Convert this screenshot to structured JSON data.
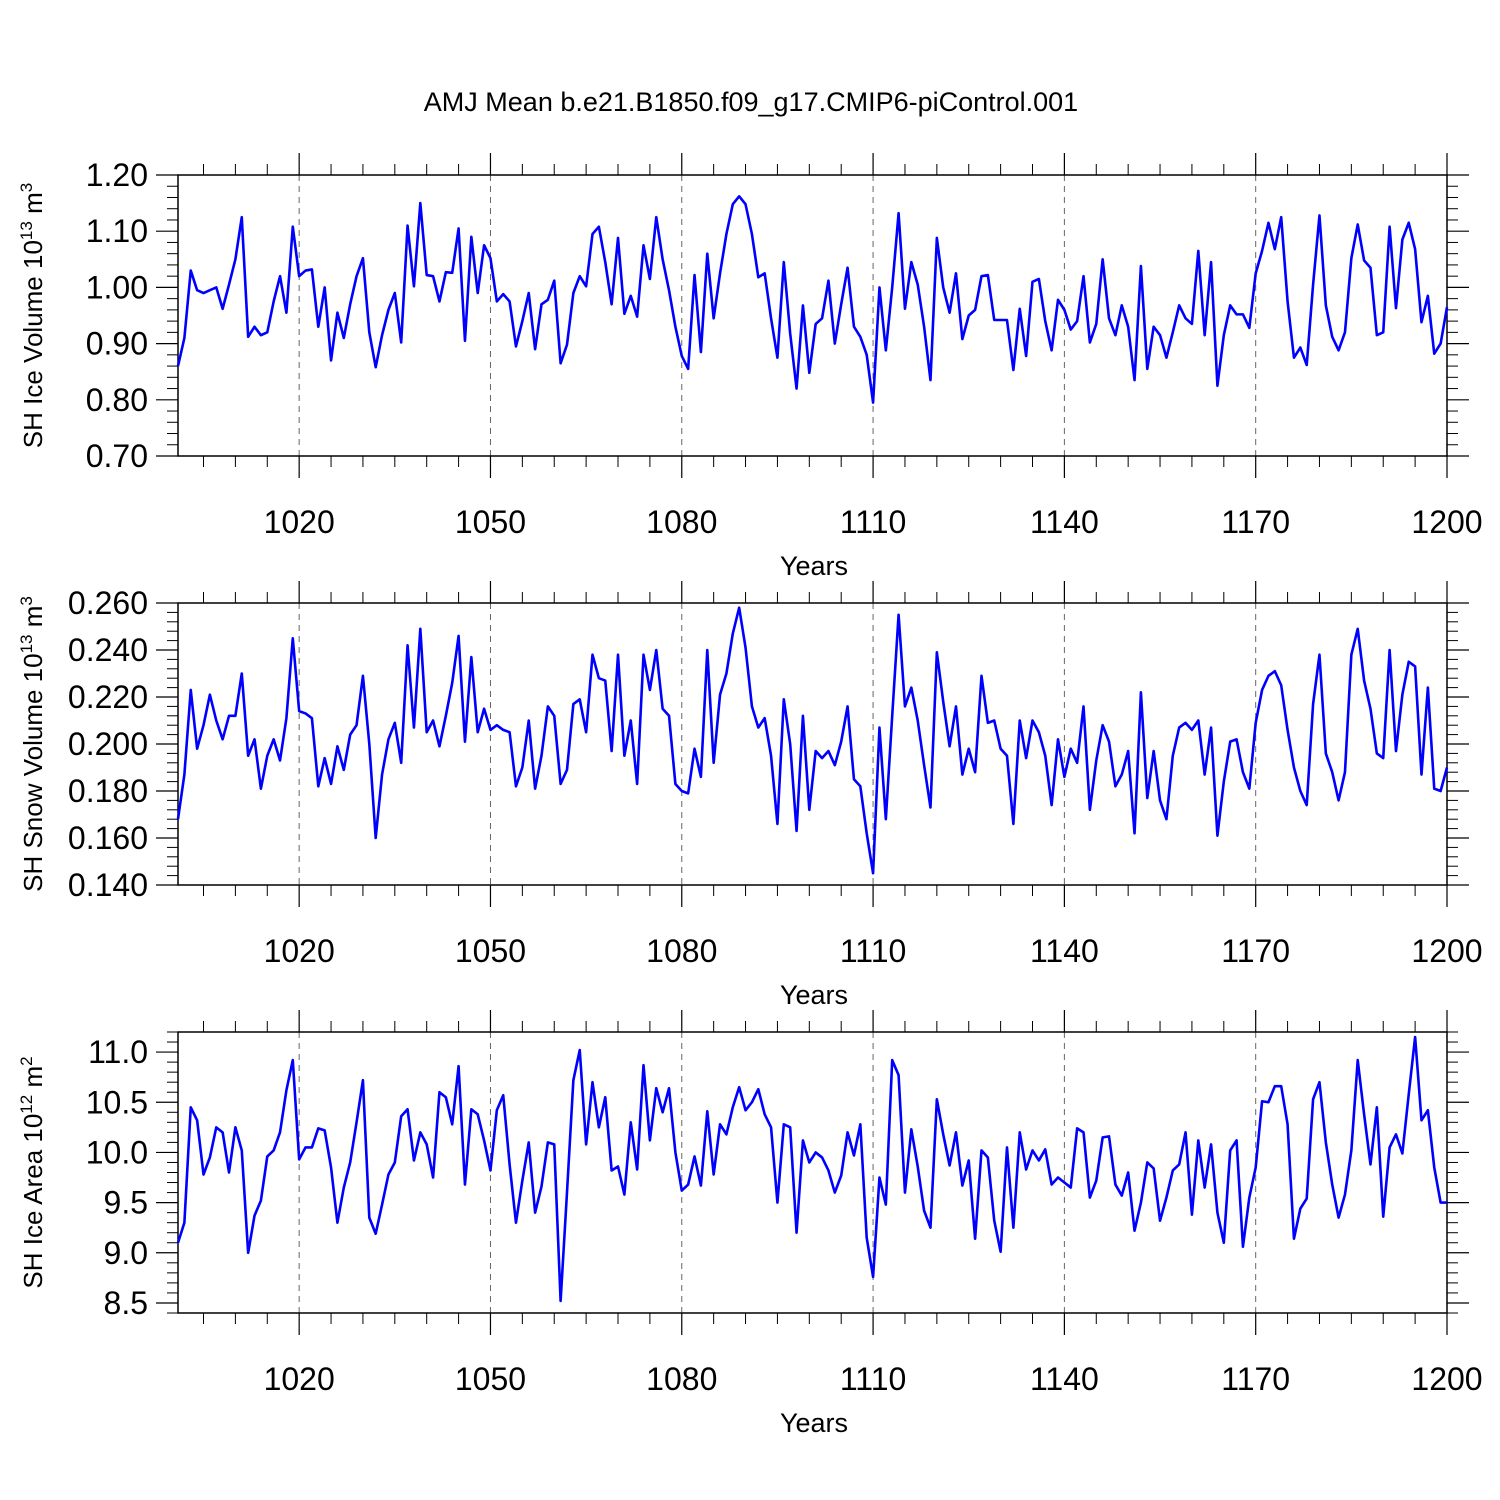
{
  "title": "AMJ Mean b.e21.B1850.f09_g17.CMIP6-piControl.001",
  "line_color": "#0000ff",
  "chart_data": [
    {
      "type": "line",
      "title": "AMJ Mean b.e21.B1850.f09_g17.CMIP6-piControl.001",
      "xlabel": "Years",
      "ylabel": "SH Ice Volume 10",
      "ylabel_exp": "13",
      "ylabel_unit": "m",
      "ylabel_unit_exp": "3",
      "xlim": [
        1001,
        1200
      ],
      "ylim": [
        0.7,
        1.2
      ],
      "yticks": [
        0.7,
        0.8,
        0.9,
        1.0,
        1.1,
        1.2
      ],
      "ytick_labels": [
        "0.70",
        "0.80",
        "0.90",
        "1.00",
        "1.10",
        "1.20"
      ],
      "xticks": [
        1020,
        1050,
        1080,
        1110,
        1140,
        1170,
        1200
      ],
      "xtick_labels": [
        "1020",
        "1050",
        "1080",
        "1110",
        "1140",
        "1170",
        "1200"
      ],
      "grid": "vertical dashed at major x ticks",
      "x_start": 1001,
      "values": [
        0.86,
        0.91,
        1.03,
        0.995,
        0.99,
        0.995,
        1.0,
        0.962,
        1.005,
        1.05,
        1.125,
        0.912,
        0.93,
        0.915,
        0.92,
        0.975,
        1.02,
        0.955,
        1.108,
        1.02,
        1.03,
        1.032,
        0.93,
        1.0,
        0.87,
        0.955,
        0.91,
        0.97,
        1.02,
        1.052,
        0.92,
        0.858,
        0.915,
        0.96,
        0.99,
        0.902,
        1.11,
        1.002,
        1.15,
        1.022,
        1.02,
        0.975,
        1.027,
        1.026,
        1.105,
        0.905,
        1.09,
        0.99,
        1.075,
        1.052,
        0.975,
        0.988,
        0.975,
        0.895,
        0.94,
        0.99,
        0.89,
        0.97,
        0.978,
        1.012,
        0.865,
        0.898,
        0.99,
        1.02,
        1.002,
        1.095,
        1.108,
        1.045,
        0.97,
        1.088,
        0.953,
        0.985,
        0.948,
        1.075,
        1.015,
        1.125,
        1.05,
        0.995,
        0.93,
        0.878,
        0.855,
        1.022,
        0.885,
        1.06,
        0.945,
        1.025,
        1.095,
        1.148,
        1.162,
        1.148,
        1.095,
        1.018,
        1.025,
        0.945,
        0.875,
        1.045,
        0.918,
        0.82,
        0.968,
        0.848,
        0.935,
        0.945,
        1.012,
        0.9,
        0.97,
        1.035,
        0.93,
        0.912,
        0.88,
        0.795,
        1.0,
        0.888,
        1.0,
        1.132,
        0.962,
        1.045,
        1.005,
        0.93,
        0.835,
        1.088,
        1.0,
        0.955,
        1.025,
        0.908,
        0.95,
        0.96,
        1.02,
        1.022,
        0.942,
        0.942,
        0.942,
        0.853,
        0.962,
        0.878,
        1.01,
        1.015,
        0.94,
        0.888,
        0.978,
        0.96,
        0.925,
        0.94,
        1.02,
        0.902,
        0.935,
        1.05,
        0.945,
        0.915,
        0.968,
        0.93,
        0.835,
        1.038,
        0.855,
        0.93,
        0.915,
        0.875,
        0.92,
        0.968,
        0.945,
        0.935,
        1.065,
        0.915,
        1.045,
        0.825,
        0.915,
        0.968,
        0.952,
        0.952,
        0.928,
        1.025,
        1.065,
        1.115,
        1.068,
        1.125,
        0.975,
        0.875,
        0.893,
        0.862,
        1.005,
        1.128,
        0.968,
        0.912,
        0.888,
        0.92,
        1.052,
        1.112,
        1.048,
        1.035,
        0.915,
        0.92,
        1.108,
        0.963,
        1.085,
        1.115,
        1.068,
        0.938,
        0.985,
        0.882,
        0.9,
        0.965
      ]
    },
    {
      "type": "line",
      "title": "",
      "xlabel": "Years",
      "ylabel": "SH Snow Volume 10",
      "ylabel_exp": "13",
      "ylabel_unit": "m",
      "ylabel_unit_exp": "3",
      "xlim": [
        1001,
        1200
      ],
      "ylim": [
        0.14,
        0.26
      ],
      "yticks": [
        0.14,
        0.16,
        0.18,
        0.2,
        0.22,
        0.24,
        0.26
      ],
      "ytick_labels": [
        "0.140",
        "0.160",
        "0.180",
        "0.200",
        "0.220",
        "0.240",
        "0.260"
      ],
      "xticks": [
        1020,
        1050,
        1080,
        1110,
        1140,
        1170,
        1200
      ],
      "xtick_labels": [
        "1020",
        "1050",
        "1080",
        "1110",
        "1140",
        "1170",
        "1200"
      ],
      "grid": "vertical dashed at major x ticks",
      "x_start": 1001,
      "values": [
        0.168,
        0.187,
        0.223,
        0.198,
        0.208,
        0.221,
        0.21,
        0.202,
        0.212,
        0.212,
        0.23,
        0.195,
        0.202,
        0.181,
        0.195,
        0.202,
        0.193,
        0.211,
        0.245,
        0.214,
        0.213,
        0.211,
        0.182,
        0.194,
        0.183,
        0.199,
        0.189,
        0.204,
        0.208,
        0.229,
        0.2,
        0.16,
        0.187,
        0.202,
        0.209,
        0.192,
        0.242,
        0.207,
        0.249,
        0.205,
        0.21,
        0.199,
        0.212,
        0.226,
        0.246,
        0.201,
        0.237,
        0.205,
        0.215,
        0.206,
        0.208,
        0.206,
        0.205,
        0.182,
        0.19,
        0.21,
        0.181,
        0.195,
        0.216,
        0.212,
        0.183,
        0.189,
        0.217,
        0.219,
        0.205,
        0.238,
        0.228,
        0.227,
        0.197,
        0.238,
        0.195,
        0.21,
        0.183,
        0.238,
        0.223,
        0.24,
        0.215,
        0.212,
        0.183,
        0.18,
        0.179,
        0.198,
        0.186,
        0.24,
        0.192,
        0.221,
        0.23,
        0.247,
        0.258,
        0.241,
        0.216,
        0.207,
        0.211,
        0.195,
        0.166,
        0.219,
        0.2,
        0.163,
        0.212,
        0.172,
        0.197,
        0.194,
        0.197,
        0.191,
        0.201,
        0.216,
        0.185,
        0.182,
        0.162,
        0.145,
        0.207,
        0.168,
        0.212,
        0.255,
        0.216,
        0.224,
        0.21,
        0.191,
        0.173,
        0.239,
        0.218,
        0.199,
        0.216,
        0.187,
        0.198,
        0.188,
        0.229,
        0.209,
        0.21,
        0.198,
        0.195,
        0.166,
        0.21,
        0.194,
        0.21,
        0.205,
        0.195,
        0.174,
        0.202,
        0.186,
        0.198,
        0.192,
        0.216,
        0.172,
        0.193,
        0.208,
        0.201,
        0.182,
        0.187,
        0.197,
        0.162,
        0.222,
        0.177,
        0.197,
        0.176,
        0.168,
        0.195,
        0.207,
        0.209,
        0.206,
        0.21,
        0.187,
        0.207,
        0.161,
        0.184,
        0.201,
        0.202,
        0.188,
        0.181,
        0.209,
        0.223,
        0.229,
        0.231,
        0.225,
        0.206,
        0.19,
        0.18,
        0.174,
        0.217,
        0.238,
        0.196,
        0.188,
        0.176,
        0.188,
        0.238,
        0.249,
        0.227,
        0.215,
        0.196,
        0.194,
        0.24,
        0.197,
        0.221,
        0.235,
        0.233,
        0.187,
        0.224,
        0.181,
        0.18,
        0.19
      ]
    },
    {
      "type": "line",
      "title": "",
      "xlabel": "Years",
      "ylabel": "SH Ice Area 10",
      "ylabel_exp": "12",
      "ylabel_unit": "m",
      "ylabel_unit_exp": "2",
      "xlim": [
        1001,
        1200
      ],
      "ylim": [
        8.4,
        11.2
      ],
      "yticks": [
        8.5,
        9.0,
        9.5,
        10.0,
        10.5,
        11.0
      ],
      "ytick_labels": [
        "8.5",
        "9.0",
        "9.5",
        "10.0",
        "10.5",
        "11.0"
      ],
      "xticks": [
        1020,
        1050,
        1080,
        1110,
        1140,
        1170,
        1200
      ],
      "xtick_labels": [
        "1020",
        "1050",
        "1080",
        "1110",
        "1140",
        "1170",
        "1200"
      ],
      "grid": "vertical dashed at major x ticks",
      "x_start": 1001,
      "values": [
        9.1,
        9.3,
        10.45,
        10.32,
        9.78,
        9.95,
        10.25,
        10.2,
        9.8,
        10.25,
        10.02,
        9.0,
        9.37,
        9.52,
        9.96,
        10.02,
        10.2,
        10.62,
        10.92,
        9.93,
        10.05,
        10.05,
        10.24,
        10.22,
        9.85,
        9.3,
        9.65,
        9.9,
        10.3,
        10.72,
        9.35,
        9.19,
        9.48,
        9.78,
        9.9,
        10.36,
        10.43,
        9.92,
        10.2,
        10.08,
        9.75,
        10.6,
        10.55,
        10.28,
        10.86,
        9.68,
        10.43,
        10.38,
        10.12,
        9.82,
        10.42,
        10.57,
        9.88,
        9.3,
        9.72,
        10.1,
        9.4,
        9.66,
        10.1,
        10.08,
        8.52,
        9.6,
        10.72,
        11.02,
        10.08,
        10.7,
        10.25,
        10.55,
        9.82,
        9.86,
        9.58,
        10.3,
        9.83,
        10.87,
        10.12,
        10.64,
        10.4,
        10.64,
        10.0,
        9.62,
        9.68,
        9.96,
        9.67,
        10.41,
        9.78,
        10.28,
        10.18,
        10.45,
        10.65,
        10.42,
        10.5,
        10.63,
        10.38,
        10.25,
        9.5,
        10.28,
        10.25,
        9.2,
        10.12,
        9.9,
        10.0,
        9.95,
        9.82,
        9.6,
        9.77,
        10.2,
        9.97,
        10.28,
        9.15,
        8.76,
        9.75,
        9.48,
        10.92,
        10.77,
        9.6,
        10.23,
        9.86,
        9.42,
        9.25,
        10.53,
        10.18,
        9.87,
        10.2,
        9.67,
        9.92,
        9.14,
        10.02,
        9.95,
        9.32,
        9.01,
        10.05,
        9.25,
        10.2,
        9.83,
        10.02,
        9.92,
        10.03,
        9.68,
        9.75,
        9.7,
        9.65,
        10.24,
        10.2,
        9.55,
        9.72,
        10.15,
        10.16,
        9.68,
        9.57,
        9.8,
        9.22,
        9.5,
        9.9,
        9.84,
        9.32,
        9.55,
        9.82,
        9.88,
        10.2,
        9.38,
        10.12,
        9.65,
        10.08,
        9.4,
        9.1,
        10.02,
        10.12,
        9.06,
        9.55,
        9.85,
        10.51,
        10.5,
        10.66,
        10.66,
        10.28,
        9.14,
        9.44,
        9.54,
        10.53,
        10.7,
        10.1,
        9.68,
        9.35,
        9.58,
        10.02,
        10.92,
        10.38,
        9.88,
        10.45,
        9.36,
        10.05,
        10.18,
        9.99,
        10.58,
        11.15,
        10.32,
        10.42,
        9.85,
        9.5,
        9.5
      ]
    }
  ]
}
